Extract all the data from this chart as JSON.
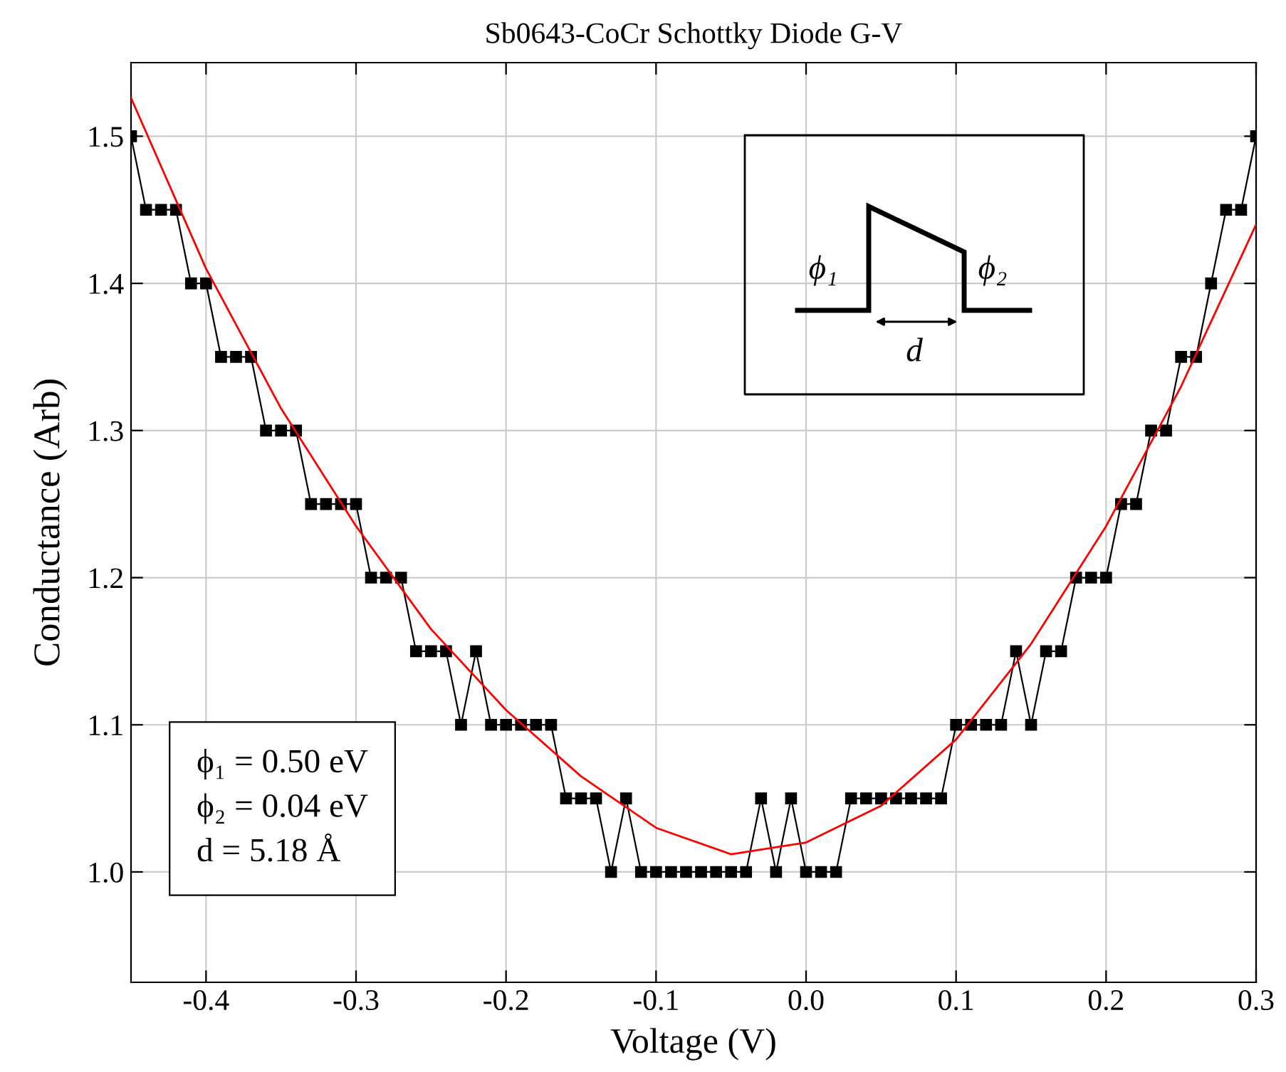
{
  "chart_data": {
    "type": "line",
    "title": "Sb0643-CoCr Schottky Diode G-V",
    "xlabel": "Voltage (V)",
    "ylabel": "Conductance (Arb)",
    "xlim": [
      -0.45,
      0.3
    ],
    "ylim": [
      0.925,
      1.55
    ],
    "xticks": [
      {
        "value": -0.4,
        "label": "-0.4"
      },
      {
        "value": -0.3,
        "label": "-0.3"
      },
      {
        "value": -0.2,
        "label": "-0.2"
      },
      {
        "value": -0.1,
        "label": "-0.1"
      },
      {
        "value": 0.0,
        "label": "0.0"
      },
      {
        "value": 0.1,
        "label": "0.1"
      },
      {
        "value": 0.2,
        "label": "0.2"
      },
      {
        "value": 0.3,
        "label": "0.3"
      }
    ],
    "yticks": [
      {
        "value": 1.0,
        "label": "1.0"
      },
      {
        "value": 1.1,
        "label": "1.1"
      },
      {
        "value": 1.2,
        "label": "1.2"
      },
      {
        "value": 1.3,
        "label": "1.3"
      },
      {
        "value": 1.4,
        "label": "1.4"
      },
      {
        "value": 1.5,
        "label": "1.5"
      }
    ],
    "grid": true,
    "legend": false,
    "series": [
      {
        "type": "line",
        "marker": "square",
        "color": "#000000",
        "x": [
          -0.45,
          -0.44,
          -0.43,
          -0.42,
          -0.41,
          -0.4,
          -0.39,
          -0.38,
          -0.37,
          -0.36,
          -0.35,
          -0.34,
          -0.33,
          -0.32,
          -0.31,
          -0.3,
          -0.29,
          -0.28,
          -0.27,
          -0.26,
          -0.25,
          -0.24,
          -0.23,
          -0.22,
          -0.21,
          -0.2,
          -0.19,
          -0.18,
          -0.17,
          -0.16,
          -0.15,
          -0.14,
          -0.13,
          -0.12,
          -0.11,
          -0.1,
          -0.09,
          -0.08,
          -0.07,
          -0.06,
          -0.05,
          -0.04,
          -0.03,
          -0.02,
          -0.01,
          0.0,
          0.01,
          0.02,
          0.03,
          0.04,
          0.05,
          0.06,
          0.07,
          0.08,
          0.09,
          0.1,
          0.11,
          0.12,
          0.13,
          0.14,
          0.15,
          0.16,
          0.17,
          0.18,
          0.19,
          0.2,
          0.21,
          0.22,
          0.23,
          0.24,
          0.25,
          0.26,
          0.27,
          0.28,
          0.29,
          0.3
        ],
        "values": [
          1.5,
          1.45,
          1.45,
          1.45,
          1.4,
          1.4,
          1.35,
          1.35,
          1.35,
          1.3,
          1.3,
          1.3,
          1.25,
          1.25,
          1.25,
          1.25,
          1.2,
          1.2,
          1.2,
          1.15,
          1.15,
          1.15,
          1.1,
          1.15,
          1.1,
          1.1,
          1.1,
          1.1,
          1.1,
          1.05,
          1.05,
          1.05,
          1.0,
          1.05,
          1.0,
          1.0,
          1.0,
          1.0,
          1.0,
          1.0,
          1.0,
          1.0,
          1.05,
          1.0,
          1.05,
          1.0,
          1.0,
          1.0,
          1.05,
          1.05,
          1.05,
          1.05,
          1.05,
          1.05,
          1.05,
          1.1,
          1.1,
          1.1,
          1.1,
          1.15,
          1.1,
          1.15,
          1.15,
          1.2,
          1.2,
          1.2,
          1.25,
          1.25,
          1.3,
          1.3,
          1.35,
          1.35,
          1.4,
          1.45,
          1.45,
          1.5
        ]
      },
      {
        "type": "line",
        "marker": "none",
        "color": "#ff0000",
        "x": [
          -0.45,
          -0.4,
          -0.35,
          -0.3,
          -0.25,
          -0.2,
          -0.15,
          -0.1,
          -0.05,
          0.0,
          0.05,
          0.1,
          0.15,
          0.2,
          0.25,
          0.3
        ],
        "values": [
          1.526,
          1.41,
          1.315,
          1.235,
          1.165,
          1.11,
          1.065,
          1.03,
          1.012,
          1.02,
          1.045,
          1.09,
          1.155,
          1.235,
          1.33,
          1.44
        ]
      }
    ],
    "annotations": [
      "ϕ₁",
      "ϕ₂",
      "d",
      "ϕ₁ = 0.50 eV\nϕ₂ = 0.04 eV\nd = 5.18 Å"
    ]
  }
}
